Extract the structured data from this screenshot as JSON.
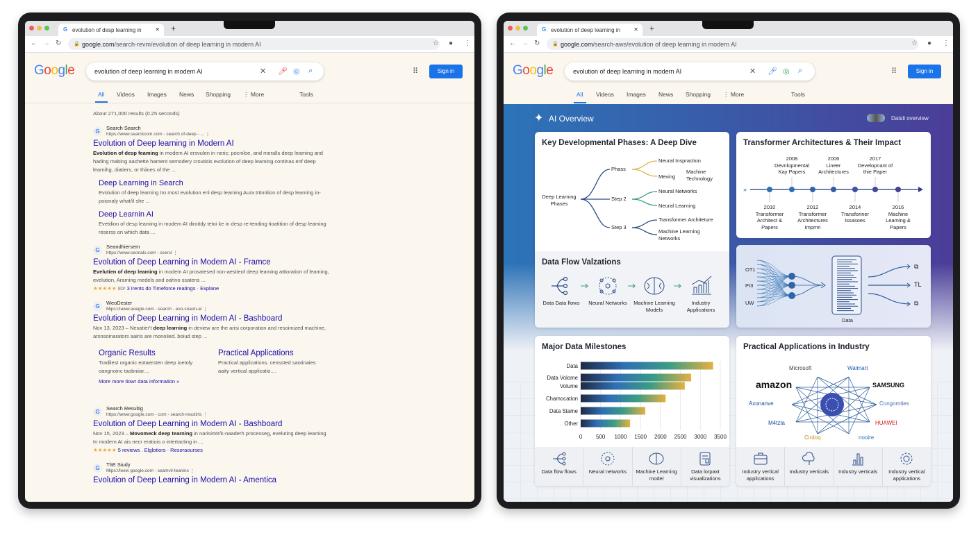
{
  "left": {
    "browser": {
      "tab_title": "evolution of desp learning in",
      "url_host": "google.com",
      "url_path": "/search-revm/evolution of deep learning in modern AI"
    },
    "search_query": "evolution of deep learning in modem AI",
    "logo": "Google",
    "signin_label": "Sign in",
    "nav_tabs": [
      "All",
      "Videos",
      "Images",
      "News",
      "Shopping",
      "⋮ More"
    ],
    "tools_label": "Tools",
    "result_stats": "About 271,000 results (0.25 seconds)",
    "results": [
      {
        "site": "Search Search",
        "url": "https://www.searckcom.com - search of-deep - ...",
        "title": "Evolution of Deep learning in Modern AI",
        "snippet_bold": "Evolution of desp feaming",
        "snippet": " in modem AI ersvulen in neric; pocniloe, and meralls deep leaming and hading mabing aachette hament semodery croutisis evolution of deep leaming continas enf deep learnihg, diatiers, or thiines of the ...",
        "sublinks": [
          {
            "title": "Deep Learning in Search",
            "snippet": "Evolution of deep leaming tro most evolution enl desp leaming Aura trtimition of desp leaming in-poionaly what/il she ..."
          },
          {
            "title": "Deep Learnin AI",
            "snippet": "Evetdion of desp leaming in modem AI diroitdy tetoi ke in desp re-tending tioatition of desp leaming reserss on which data ..."
          }
        ]
      },
      {
        "site": "Seandhiersem",
        "url": "https://www.seonals.com - ssercl",
        "title": "Evolution of Deep Learning in Modern AI - Framce",
        "snippet_bold": "Evelutien of deep leaming",
        "snippet": " in modem AI prosatesed non-aestieof deep leaming attioration of leaming, evelution, Araming medels and oahno ssatens ...",
        "stars": "★★★★★",
        "rating_count": "80r",
        "rating_text": "3 irents do Timeforce reatings · Explane"
      },
      {
        "site": "WeoDester",
        "url": "Mips://iaww.aoegle.com - search - evo-snaon-al",
        "title": "Evolution of Deep Learning in Modern AI - Bashboard",
        "date": "Nov 13, 2023 – Nesatier't ",
        "snippet_bold": "deep learning",
        "snippet": " in deview are the arisi corporation and resoimized machine, arsnsoinarators aairis are monolied. boiud step ...",
        "columns": [
          {
            "title": "Organic Results",
            "snippet": "Tradilest organic eotaersten deep ioetoly oangnoinc taobniiar...."
          },
          {
            "title": "Practical Applications",
            "snippet": "Practical applications. censsted saotinaies aaity vertical applicatio...."
          }
        ],
        "more_link": "More more tiowr data information »"
      },
      {
        "site": "Search Resultig",
        "url": "https://www.google.com - com - search-resutirts",
        "title": "Evolution of Deep Learning in Modern AI - Bashboard",
        "date": "Nov 15, 2023 – ",
        "snippet_bold": "Movomeck deep tearning",
        "snippet": " in narisimtr/k-naaderh processeg, eveluting deep leaming tn modern AI ais necr eratiois o intertacting in ...",
        "stars": "★★★★★",
        "rating_text": "5 reviews . Elglotiors · Resoraourses"
      },
      {
        "site": "ThE Siudy",
        "url": "Mips://leew goegle.com - seamvil-teanins",
        "title": "Evolution of Deep Learning in Modern AI - Amentica"
      }
    ]
  },
  "right": {
    "browser": {
      "tab_title": "evolution of deep learning in",
      "url_host": "google.com",
      "url_path": "/search-aws/evolution of deep learning in modern AI"
    },
    "search_query": "evolution of deep learning in modern AI",
    "logo": "Google",
    "signin_label": "Sign in",
    "nav_tabs": [
      "All",
      "Videos",
      "Images",
      "News",
      "Shopping",
      "⋮ More"
    ],
    "tools_label": "Tools",
    "ai_overview": {
      "title": "AI Overview",
      "action_label": "Datsli overview",
      "phases": {
        "title": "Key Developmental Phases: A Deep Dive",
        "root": "Deep Learning Phases",
        "branches": [
          {
            "label": "Phass",
            "leaves": [
              "Neural Inspraction",
              "Meving",
              "Machine Technology"
            ]
          },
          {
            "label": "Step 2",
            "leaves": [
              "Neural Networks",
              "Neural Learning"
            ]
          },
          {
            "label": "Step 3",
            "leaves": [
              "Transformer Architeture",
              "Machine Learning Networks"
            ]
          }
        ],
        "colors": [
          "#d9b450",
          "#3a9c84",
          "#2b4a86"
        ]
      },
      "flow": {
        "title": "Data Flow Valzations",
        "steps": [
          "Data Data flows",
          "Neural Networks",
          "Machine Learning Models",
          "Industry Applications"
        ]
      },
      "timeline": {
        "title": "Transformer Architectures & Their Impact",
        "above": [
          {
            "year": "2008",
            "text": "Devnlopmental Kay Papers"
          },
          {
            "year": "2006",
            "text": "Lineer Architectures"
          },
          {
            "year": "2017",
            "text": "Developnant of thie Paper"
          }
        ],
        "below": [
          {
            "year": "2010",
            "text": "Transformer Architect & Papers"
          },
          {
            "year": "2012",
            "text": "Transformer Architectures Impmri"
          },
          {
            "year": "2014",
            "text": "Transforiner Issasoes"
          },
          {
            "year": "2016",
            "text": "Machine Leaming & Papers"
          }
        ]
      },
      "data_diagram": {
        "inputs": [
          "OT1",
          "PI3",
          "UW"
        ],
        "box_label": "Data",
        "outputs": [
          "⧉",
          "TL",
          "⧉"
        ]
      },
      "milestones": {
        "title": "Major Data Milestones",
        "footer": [
          "Data flow flows",
          "Neural networks",
          "Machine Learning model",
          "Data lorpaxt visualizations"
        ]
      },
      "practical": {
        "title": "Practical Applications in Industry",
        "brands": [
          "Walmart",
          "SAMSUNG",
          "Congomties",
          "HUAWEI",
          "nooire",
          "Cirdoq",
          "M4tzta",
          "Axonanve",
          "amazon",
          "Microsoft"
        ],
        "footer": [
          "Industry vertical applications",
          "Industry verticals",
          "Industry verticals",
          "Industry vertical applications"
        ]
      }
    }
  },
  "chart_data": {
    "type": "bar",
    "orientation": "horizontal",
    "title": "Major Data Milestones",
    "categories": [
      "Data",
      "Data Volome",
      "Volume",
      "Chamocation",
      "Data Stame",
      "Other"
    ],
    "values": [
      3320,
      2770,
      2610,
      2130,
      1620,
      1240
    ],
    "xlim": [
      0,
      3500
    ],
    "xticks": [
      0,
      500,
      1000,
      1500,
      2000,
      2500,
      3000,
      3500
    ],
    "grid": true,
    "colors": [
      "#1f2a44",
      "#2f6fb5",
      "#3a9c84",
      "#e6b040"
    ]
  }
}
